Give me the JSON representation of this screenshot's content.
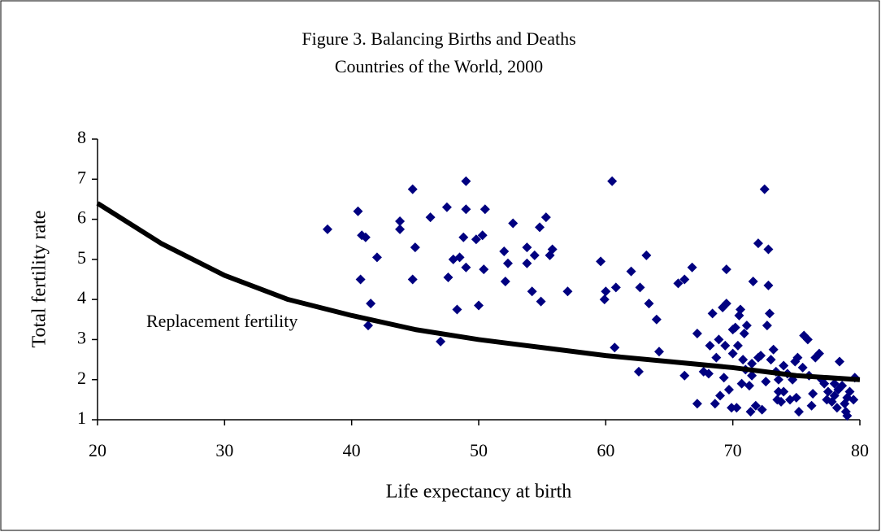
{
  "chart_data": {
    "type": "scatter",
    "title": "Figure 3. Balancing Births and Deaths",
    "subtitle": "Countries of the World, 2000",
    "x_label": "Life expectancy at birth",
    "y_label": "Total fertility rate",
    "xlim": [
      20,
      80
    ],
    "ylim": [
      1,
      8
    ],
    "xticks": [
      20,
      30,
      40,
      50,
      60,
      70,
      80
    ],
    "yticks": [
      1,
      2,
      3,
      4,
      5,
      6,
      7,
      8
    ],
    "grid": false,
    "series": [
      {
        "type": "scatter",
        "color": "#000080",
        "x": [
          38.1,
          40.5,
          40.7,
          40.8,
          41.1,
          41.3,
          41.5,
          42,
          43.8,
          43.8,
          44.8,
          44.8,
          45,
          46.2,
          47,
          47.5,
          47.6,
          48,
          48.3,
          48.5,
          48.8,
          49,
          49,
          49,
          49.8,
          50,
          50.3,
          50.4,
          50.5,
          52,
          52.1,
          52.3,
          52.7,
          53.8,
          53.8,
          54.2,
          54.4,
          54.8,
          54.9,
          55.3,
          55.6,
          55.8,
          57,
          59.6,
          59.9,
          60,
          60.5,
          60.7,
          60.8,
          62,
          62.6,
          62.7,
          63.2,
          63.4,
          64,
          64.2,
          65.7,
          66.2,
          66.2,
          66.8,
          67.2,
          67.2,
          67.7,
          68.1,
          68.2,
          68.4,
          68.6,
          68.7,
          68.9,
          69,
          69.2,
          69.3,
          69.4,
          69.5,
          69.5,
          69.7,
          69.9,
          70,
          70,
          70.2,
          70.3,
          70.4,
          70.5,
          70.6,
          70.7,
          70.8,
          70.9,
          71,
          71.1,
          71.3,
          71.4,
          71.5,
          71.6,
          71.8,
          72,
          72,
          72.3,
          72.5,
          72.6,
          72.7,
          72.8,
          72.8,
          72.9,
          73,
          73.2,
          73.4,
          73.5,
          73.6,
          73.8,
          74,
          74,
          74.3,
          74.5,
          74.7,
          74.9,
          75.1,
          75.2,
          75.5,
          75.6,
          75.9,
          76.2,
          76.3,
          76.5,
          76.8,
          77,
          77.4,
          77.5,
          77.8,
          78,
          78.2,
          78.3,
          78.4,
          78.6,
          78.8,
          78.9,
          79,
          79.2,
          79.5,
          79.6,
          78,
          77.2,
          76,
          75,
          73.6,
          72.2,
          71.5,
          79
        ],
        "values": [
          5.75,
          6.2,
          4.5,
          5.6,
          5.55,
          3.35,
          3.9,
          5.05,
          5.95,
          5.75,
          6.75,
          4.5,
          5.3,
          6.05,
          2.95,
          6.3,
          4.55,
          5.0,
          3.75,
          5.05,
          5.55,
          6.95,
          6.25,
          4.8,
          5.5,
          3.85,
          5.6,
          4.75,
          6.25,
          5.2,
          4.45,
          4.9,
          5.9,
          5.3,
          4.9,
          4.2,
          5.1,
          5.8,
          3.95,
          6.05,
          5.1,
          5.25,
          4.2,
          4.95,
          4.0,
          4.2,
          6.95,
          2.8,
          4.3,
          4.7,
          2.2,
          4.3,
          5.1,
          3.9,
          3.5,
          2.7,
          4.4,
          4.5,
          2.1,
          4.8,
          1.4,
          3.15,
          2.2,
          2.15,
          2.85,
          3.65,
          1.4,
          2.55,
          3.0,
          1.6,
          3.8,
          2.05,
          2.85,
          3.9,
          4.75,
          1.75,
          1.3,
          2.65,
          3.25,
          3.3,
          1.3,
          2.85,
          3.6,
          3.75,
          1.9,
          2.5,
          3.15,
          2.25,
          3.35,
          1.85,
          1.2,
          2.1,
          4.45,
          1.35,
          2.55,
          5.4,
          1.25,
          6.75,
          1.95,
          3.35,
          5.25,
          4.35,
          3.65,
          2.5,
          2.75,
          2.2,
          1.5,
          2.0,
          1.45,
          2.35,
          1.7,
          2.15,
          1.5,
          2.0,
          2.45,
          2.55,
          1.2,
          2.3,
          3.1,
          3.0,
          1.35,
          1.65,
          2.55,
          2.65,
          2.0,
          1.5,
          1.7,
          1.45,
          1.6,
          1.3,
          1.75,
          2.45,
          1.85,
          1.4,
          1.2,
          1.55,
          1.7,
          1.5,
          2.05,
          1.9,
          1.9,
          2.1,
          1.55,
          1.7,
          2.6,
          2.4,
          1.1
        ]
      },
      {
        "type": "line",
        "name": "Replacement fertility",
        "color": "#000000",
        "x": [
          20,
          25,
          30,
          35,
          40,
          45,
          50,
          55,
          60,
          65,
          70,
          75,
          80
        ],
        "values": [
          6.4,
          5.4,
          4.6,
          4.0,
          3.6,
          3.25,
          3.0,
          2.8,
          2.6,
          2.45,
          2.3,
          2.1,
          2.0
        ]
      }
    ]
  }
}
